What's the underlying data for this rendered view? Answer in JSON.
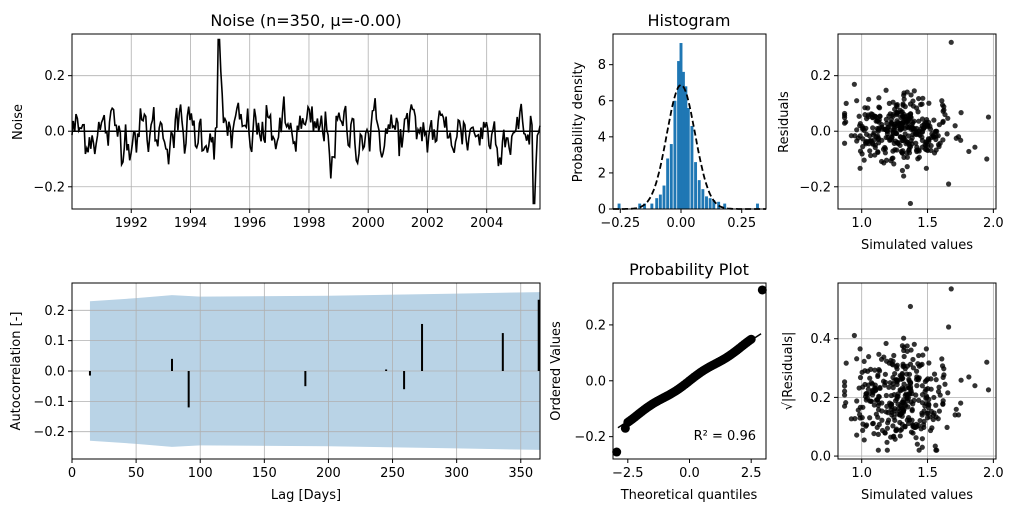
{
  "colors": {
    "noise_line": "#000000",
    "histogram_bar": "#1f77b4",
    "confidence_band": "#b9d3e6",
    "grid": "#b0b0b0",
    "points": "#000000"
  },
  "chart_data": [
    {
      "id": "noise",
      "type": "line",
      "title": "Noise (n=350, μ=-0.00)",
      "xlabel": "",
      "ylabel": "Noise",
      "x_ticks": [
        "1992",
        "1994",
        "1996",
        "1998",
        "2000",
        "2002",
        "2004"
      ],
      "y_ticks": [
        "−0.2",
        "0.0",
        "0.2"
      ],
      "xlim": [
        1990.0,
        2005.8
      ],
      "ylim": [
        -0.28,
        0.35
      ],
      "grid": true,
      "n_points": 350,
      "spike_annotations": [
        {
          "x": 1994.95,
          "y": 0.33
        },
        {
          "x": 1998.75,
          "y": -0.17
        },
        {
          "x": 2005.6,
          "y": -0.26
        }
      ]
    },
    {
      "id": "histogram",
      "type": "bar",
      "title": "Histogram",
      "xlabel": "",
      "ylabel": "Probability density",
      "x_ticks": [
        "−0.25",
        "0.00",
        "0.25"
      ],
      "y_ticks": [
        "0",
        "2",
        "4",
        "6",
        "8"
      ],
      "xlim": [
        -0.28,
        0.35
      ],
      "ylim": [
        0,
        9.7
      ],
      "bins": [
        {
          "x": -0.255,
          "h": 0.3
        },
        {
          "x": -0.17,
          "h": 0.3
        },
        {
          "x": -0.15,
          "h": 0.3
        },
        {
          "x": -0.12,
          "h": 0.3
        },
        {
          "x": -0.1,
          "h": 0.6
        },
        {
          "x": -0.085,
          "h": 0.8
        },
        {
          "x": -0.07,
          "h": 1.3
        },
        {
          "x": -0.055,
          "h": 2.8
        },
        {
          "x": -0.04,
          "h": 3.6
        },
        {
          "x": -0.025,
          "h": 6.0
        },
        {
          "x": -0.01,
          "h": 8.2
        },
        {
          "x": 0.0,
          "h": 9.2
        },
        {
          "x": 0.01,
          "h": 7.6
        },
        {
          "x": 0.02,
          "h": 6.8
        },
        {
          "x": 0.03,
          "h": 5.6
        },
        {
          "x": 0.045,
          "h": 4.6
        },
        {
          "x": 0.06,
          "h": 2.6
        },
        {
          "x": 0.075,
          "h": 1.6
        },
        {
          "x": 0.09,
          "h": 1.1
        },
        {
          "x": 0.105,
          "h": 0.7
        },
        {
          "x": 0.12,
          "h": 0.6
        },
        {
          "x": 0.135,
          "h": 0.5
        },
        {
          "x": 0.155,
          "h": 0.4
        },
        {
          "x": 0.18,
          "h": 0.3
        },
        {
          "x": 0.315,
          "h": 0.3
        }
      ],
      "bin_width": 0.012,
      "normal_fit": {
        "mean": 0.0,
        "sd": 0.058
      }
    },
    {
      "id": "residuals",
      "type": "scatter",
      "title": "",
      "xlabel": "Simulated values",
      "ylabel": "Residuals",
      "x_ticks": [
        "1.0",
        "1.5",
        "2.0"
      ],
      "y_ticks": [
        "−0.2",
        "0.0",
        "0.2"
      ],
      "xlim": [
        0.82,
        2.02
      ],
      "ylim": [
        -0.28,
        0.35
      ],
      "grid": true,
      "n_points": 350,
      "outliers": [
        {
          "x": 1.68,
          "y": 0.32
        },
        {
          "x": 1.37,
          "y": -0.26
        },
        {
          "x": 1.66,
          "y": -0.19
        },
        {
          "x": 1.95,
          "y": -0.1
        }
      ]
    },
    {
      "id": "acf",
      "type": "bar",
      "title": "",
      "xlabel": "Lag [Days]",
      "ylabel": "Autocorrelation [-]",
      "x_ticks": [
        "0",
        "50",
        "100",
        "150",
        "200",
        "250",
        "300",
        "350"
      ],
      "y_ticks": [
        "−0.2",
        "−0.1",
        "0.0",
        "0.1",
        "0.2"
      ],
      "xlim": [
        0,
        365
      ],
      "ylim": [
        -0.29,
        0.29
      ],
      "grid": true,
      "lags": [
        14,
        78,
        91,
        182,
        245,
        259,
        273,
        336,
        364
      ],
      "values": [
        -0.015,
        0.04,
        -0.12,
        -0.05,
        0.005,
        -0.06,
        0.155,
        0.125,
        0.235
      ],
      "confidence_band": {
        "x": [
          14,
          50,
          78,
          100,
          200,
          300,
          365
        ],
        "upper": [
          0.23,
          0.24,
          0.25,
          0.245,
          0.248,
          0.255,
          0.26
        ]
      }
    },
    {
      "id": "probplot",
      "type": "scatter",
      "title": "Probability Plot",
      "xlabel": "Theoretical quantiles",
      "ylabel": "Ordered Values",
      "x_ticks": [
        "−2.5",
        "0.0",
        "2.5"
      ],
      "y_ticks": [
        "−0.2",
        "0.0",
        "0.2"
      ],
      "xlim": [
        -3.1,
        3.1
      ],
      "ylim": [
        -0.28,
        0.35
      ],
      "annotation": "R² = 0.96",
      "fit_line": {
        "slope": 0.058,
        "intercept": 0.0
      },
      "outliers": [
        {
          "x": -2.95,
          "y": -0.255
        },
        {
          "x": -2.6,
          "y": -0.17
        },
        {
          "x": 2.95,
          "y": 0.325
        }
      ]
    },
    {
      "id": "sqrt_residuals",
      "type": "scatter",
      "title": "",
      "xlabel": "Simulated values",
      "ylabel": "√|Residuals|",
      "x_ticks": [
        "1.0",
        "1.5",
        "2.0"
      ],
      "y_ticks": [
        "0.0",
        "0.2",
        "0.4"
      ],
      "xlim": [
        0.82,
        2.02
      ],
      "ylim": [
        -0.01,
        0.59
      ],
      "grid": true,
      "n_points": 350,
      "outliers": [
        {
          "x": 1.68,
          "y": 0.57
        },
        {
          "x": 1.37,
          "y": 0.51
        },
        {
          "x": 1.66,
          "y": 0.44
        },
        {
          "x": 1.95,
          "y": 0.32
        }
      ]
    }
  ]
}
